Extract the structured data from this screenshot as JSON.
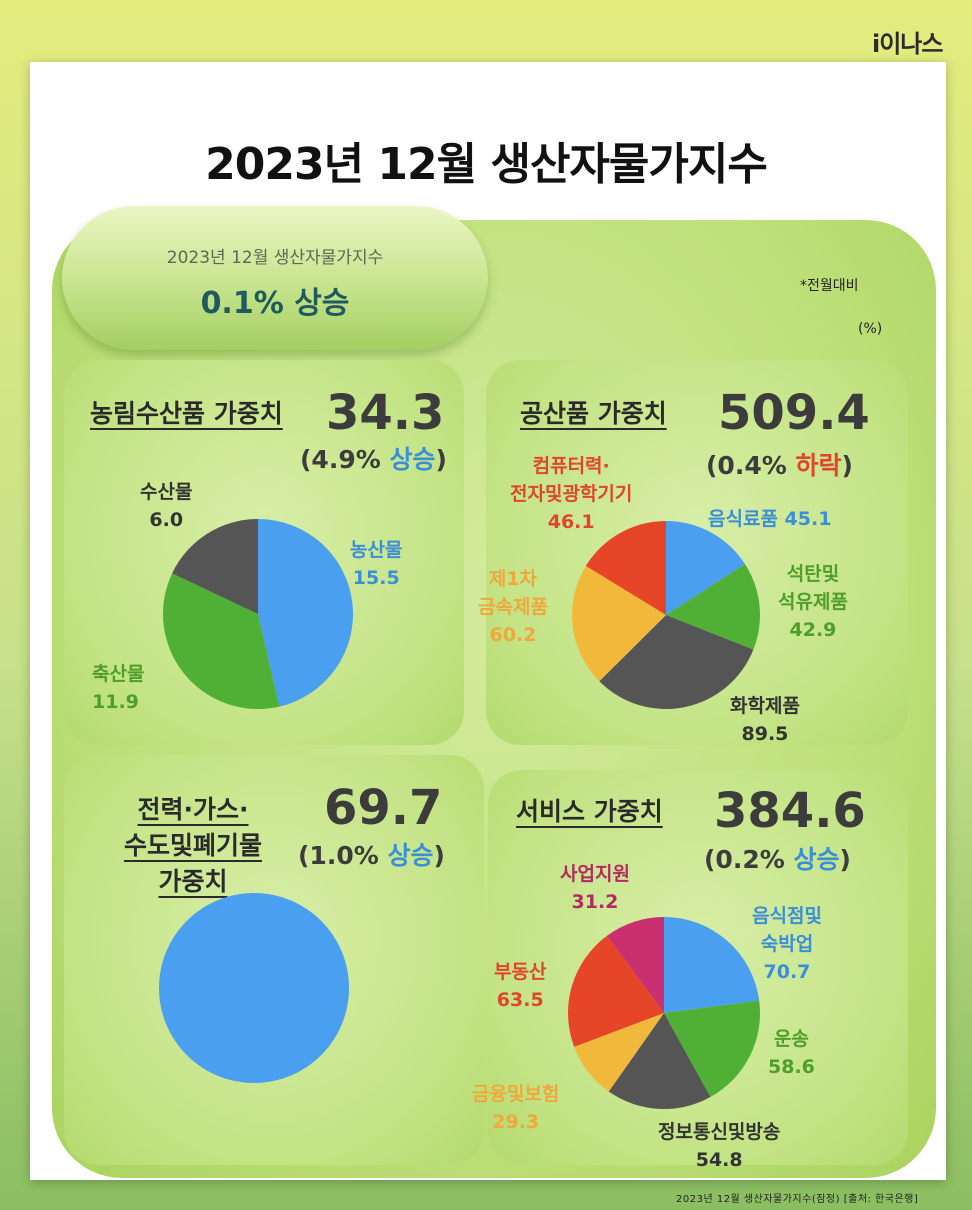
{
  "logo": "i이나스",
  "title": "2023년 12월 생산자물가지수",
  "summary": {
    "label": "2023년 12월 생산자물가지수",
    "value": "0.1% 상승"
  },
  "notes": {
    "basis": "*전월대비",
    "unit": "(%)"
  },
  "footer": "2023년 12월 생산자물가지수(잠정) [출처: 한국은행]",
  "colors": {
    "blue": "#4a9ff0",
    "green": "#4fb035",
    "gray": "#555555",
    "yellow": "#f0b93c",
    "red": "#e64528",
    "magenta": "#c9306f",
    "up": "#3a8fd6",
    "down": "#e0462c"
  },
  "panels": {
    "agri": {
      "title": "농림수산품 가중치",
      "weight": "34.3",
      "change_pre": "(4.9% ",
      "change_word": "상승",
      "change_post": ")"
    },
    "ind": {
      "title": "공산품 가중치",
      "weight": "509.4",
      "change_pre": "(0.4% ",
      "change_word": "하락",
      "change_post": ")"
    },
    "util": {
      "title_line1": "전력·가스·",
      "title_line2": "수도및폐기물",
      "title_line3": "가중치",
      "weight": "69.7",
      "change_pre": "(1.0% ",
      "change_word": "상승",
      "change_post": ")"
    },
    "service": {
      "title": "서비스 가중치",
      "weight": "384.6",
      "change_pre": "(0.2% ",
      "change_word": "상승",
      "change_post": ")"
    }
  },
  "chart_data": [
    {
      "type": "pie",
      "title": "농림수산품 가중치",
      "slices": [
        {
          "label": "농산물",
          "value": 15.5,
          "color": "#4a9ff0"
        },
        {
          "label": "축산물",
          "value": 11.9,
          "color": "#4fb035"
        },
        {
          "label": "수산물",
          "value": 6.0,
          "color": "#555555"
        }
      ]
    },
    {
      "type": "pie",
      "title": "공산품 가중치",
      "slices": [
        {
          "label": "음식료품",
          "value": 45.1,
          "color": "#4a9ff0"
        },
        {
          "label": "석탄및 석유제품",
          "value": 42.9,
          "color": "#4fb035"
        },
        {
          "label": "화학제품",
          "value": 89.5,
          "color": "#555555"
        },
        {
          "label": "제1차 금속제품",
          "value": 60.2,
          "color": "#f0b93c"
        },
        {
          "label": "컴퓨터력· 전자및광학기기",
          "value": 46.1,
          "color": "#e64528"
        }
      ]
    },
    {
      "type": "pie",
      "title": "전력·가스·수도및폐기물 가중치",
      "slices": [
        {
          "label": "",
          "value": 69.7,
          "color": "#4a9ff0"
        }
      ]
    },
    {
      "type": "pie",
      "title": "서비스 가중치",
      "slices": [
        {
          "label": "음식점및 숙박업",
          "value": 70.7,
          "color": "#4a9ff0"
        },
        {
          "label": "운송",
          "value": 58.6,
          "color": "#4fb035"
        },
        {
          "label": "정보통신및방송",
          "value": 54.8,
          "color": "#555555"
        },
        {
          "label": "금융및보험",
          "value": 29.3,
          "color": "#f0b93c"
        },
        {
          "label": "부동산",
          "value": 63.5,
          "color": "#e64528"
        },
        {
          "label": "사업지원",
          "value": 31.2,
          "color": "#c9306f"
        }
      ]
    }
  ],
  "slice_labels": {
    "agri": [
      {
        "l1": "농산물",
        "val": "15.5"
      },
      {
        "l1": "축산물",
        "val": "11.9"
      },
      {
        "l1": "수산물",
        "val": "6.0"
      }
    ],
    "ind": [
      {
        "l1": "음식료품 45.1"
      },
      {
        "l1": "석탄및",
        "l2": "석유제품",
        "val": "42.9"
      },
      {
        "l1": "화학제품",
        "val": "89.5"
      },
      {
        "l1": "제1차",
        "l2": "금속제품",
        "val": "60.2"
      },
      {
        "l1": "컴퓨터력·",
        "l2": "전자및광학기기",
        "val": "46.1"
      }
    ],
    "service": [
      {
        "l1": "음식점및",
        "l2": "숙박업",
        "val": "70.7"
      },
      {
        "l1": "운송",
        "val": "58.6"
      },
      {
        "l1": "정보통신및방송",
        "val": "54.8"
      },
      {
        "l1": "금융및보험",
        "val": "29.3"
      },
      {
        "l1": "부동산",
        "val": "63.5"
      },
      {
        "l1": "사업지원",
        "val": "31.2"
      }
    ]
  }
}
